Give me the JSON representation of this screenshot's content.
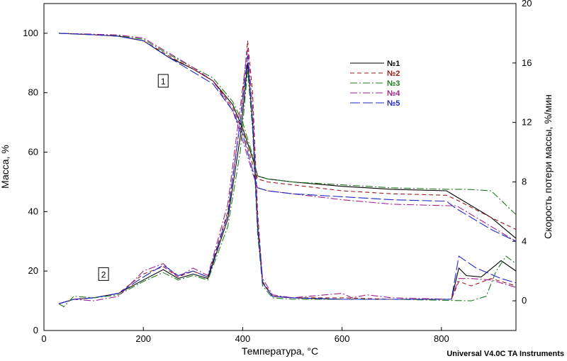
{
  "chart_data": {
    "type": "line",
    "xlabel": "Температура, °C",
    "ylabel_left": "Масса, %",
    "ylabel_right": "Скорость потери массы, %/мин",
    "xlim": [
      0,
      950
    ],
    "ylim_left": [
      0,
      110
    ],
    "ylim_right": [
      -2,
      20
    ],
    "x_ticks": [
      0,
      200,
      400,
      600,
      800
    ],
    "y_left_ticks": [
      0,
      20,
      40,
      60,
      80,
      100
    ],
    "y_right_ticks": [
      0,
      4,
      8,
      12,
      16,
      20
    ],
    "grid": false,
    "legend_position": "top-right",
    "footer": "Universal V4.0C TA Instruments",
    "curve_labels": [
      {
        "text": "1",
        "x": 240,
        "y": 84
      },
      {
        "text": "2",
        "x": 120,
        "y": 19
      }
    ],
    "series": [
      {
        "name": "№1",
        "color": "#000000",
        "dash": "",
        "mass": [
          [
            30,
            100
          ],
          [
            100,
            99.5
          ],
          [
            150,
            99
          ],
          [
            200,
            97.5
          ],
          [
            250,
            92
          ],
          [
            300,
            88
          ],
          [
            340,
            84
          ],
          [
            380,
            76
          ],
          [
            400,
            68
          ],
          [
            420,
            58
          ],
          [
            430,
            52
          ],
          [
            450,
            51
          ],
          [
            500,
            50
          ],
          [
            600,
            48.5
          ],
          [
            700,
            47.5
          ],
          [
            810,
            47
          ],
          [
            830,
            45
          ],
          [
            900,
            38
          ],
          [
            950,
            31
          ]
        ],
        "rate": [
          [
            30,
            -0.2
          ],
          [
            60,
            0.1
          ],
          [
            100,
            0.2
          ],
          [
            150,
            0.5
          ],
          [
            200,
            1.4
          ],
          [
            240,
            2.1
          ],
          [
            270,
            1.5
          ],
          [
            300,
            1.8
          ],
          [
            330,
            1.5
          ],
          [
            370,
            5.5
          ],
          [
            395,
            11
          ],
          [
            410,
            16
          ],
          [
            420,
            12
          ],
          [
            430,
            5
          ],
          [
            440,
            1.2
          ],
          [
            460,
            0.3
          ],
          [
            500,
            0.2
          ],
          [
            600,
            0.1
          ],
          [
            700,
            0.1
          ],
          [
            820,
            0.1
          ],
          [
            835,
            2.2
          ],
          [
            850,
            1.7
          ],
          [
            880,
            1.6
          ],
          [
            920,
            2.7
          ],
          [
            950,
            2.0
          ]
        ]
      },
      {
        "name": "№2",
        "color": "#9b1b1b",
        "dash": "6,4",
        "mass": [
          [
            30,
            100
          ],
          [
            100,
            99.5
          ],
          [
            150,
            99
          ],
          [
            200,
            97.5
          ],
          [
            250,
            92.5
          ],
          [
            300,
            88
          ],
          [
            340,
            84
          ],
          [
            380,
            75
          ],
          [
            400,
            67
          ],
          [
            420,
            56
          ],
          [
            430,
            51
          ],
          [
            450,
            50
          ],
          [
            500,
            49
          ],
          [
            600,
            47
          ],
          [
            700,
            46
          ],
          [
            810,
            45.5
          ],
          [
            830,
            44
          ],
          [
            900,
            38
          ],
          [
            950,
            34
          ]
        ],
        "rate": [
          [
            30,
            -0.2
          ],
          [
            60,
            0.1
          ],
          [
            100,
            0.2
          ],
          [
            150,
            0.5
          ],
          [
            200,
            1.8
          ],
          [
            240,
            2.3
          ],
          [
            270,
            1.6
          ],
          [
            300,
            2.0
          ],
          [
            330,
            1.6
          ],
          [
            370,
            6
          ],
          [
            395,
            12
          ],
          [
            410,
            17.5
          ],
          [
            420,
            14
          ],
          [
            430,
            6
          ],
          [
            440,
            1.3
          ],
          [
            460,
            0.3
          ],
          [
            500,
            0.2
          ],
          [
            600,
            0.2
          ],
          [
            700,
            0.1
          ],
          [
            820,
            0.1
          ],
          [
            835,
            1.3
          ],
          [
            860,
            1.0
          ],
          [
            900,
            1.5
          ],
          [
            950,
            1.0
          ]
        ]
      },
      {
        "name": "№3",
        "color": "#1e7b1e",
        "dash": "10,3,2,3",
        "mass": [
          [
            30,
            100
          ],
          [
            100,
            99.6
          ],
          [
            150,
            99.2
          ],
          [
            200,
            98
          ],
          [
            250,
            93
          ],
          [
            300,
            88.5
          ],
          [
            340,
            85
          ],
          [
            380,
            77
          ],
          [
            400,
            70
          ],
          [
            420,
            59
          ],
          [
            430,
            52
          ],
          [
            450,
            51
          ],
          [
            500,
            50
          ],
          [
            600,
            49
          ],
          [
            700,
            48
          ],
          [
            810,
            47.5
          ],
          [
            850,
            47.5
          ],
          [
            900,
            47
          ],
          [
            950,
            39
          ]
        ],
        "rate": [
          [
            30,
            -0.2
          ],
          [
            40,
            -0.4
          ],
          [
            60,
            0.3
          ],
          [
            100,
            0.2
          ],
          [
            150,
            0.4
          ],
          [
            200,
            1.3
          ],
          [
            240,
            1.9
          ],
          [
            270,
            1.4
          ],
          [
            300,
            1.7
          ],
          [
            330,
            1.4
          ],
          [
            370,
            5
          ],
          [
            395,
            10
          ],
          [
            410,
            15.5
          ],
          [
            420,
            11.5
          ],
          [
            430,
            4.5
          ],
          [
            440,
            1.0
          ],
          [
            460,
            0.2
          ],
          [
            500,
            0.1
          ],
          [
            600,
            0.1
          ],
          [
            700,
            0.1
          ],
          [
            860,
            0.0
          ],
          [
            890,
            0.3
          ],
          [
            910,
            2.0
          ],
          [
            930,
            3.0
          ],
          [
            950,
            2.5
          ]
        ]
      },
      {
        "name": "№4",
        "color": "#a0208c",
        "dash": "10,3,2,3",
        "mass": [
          [
            30,
            100
          ],
          [
            100,
            99.7
          ],
          [
            150,
            99.4
          ],
          [
            200,
            98.4
          ],
          [
            250,
            93.5
          ],
          [
            300,
            88.5
          ],
          [
            340,
            84
          ],
          [
            380,
            74
          ],
          [
            400,
            64
          ],
          [
            420,
            53
          ],
          [
            430,
            48
          ],
          [
            450,
            47
          ],
          [
            500,
            46
          ],
          [
            600,
            44
          ],
          [
            700,
            42.5
          ],
          [
            810,
            42
          ],
          [
            830,
            42
          ],
          [
            900,
            35
          ],
          [
            950,
            30
          ]
        ],
        "rate": [
          [
            30,
            -0.2
          ],
          [
            60,
            0.1
          ],
          [
            100,
            0.0
          ],
          [
            150,
            0.3
          ],
          [
            200,
            2.0
          ],
          [
            240,
            2.5
          ],
          [
            270,
            1.6
          ],
          [
            300,
            2.2
          ],
          [
            330,
            1.7
          ],
          [
            370,
            6.5
          ],
          [
            395,
            13
          ],
          [
            410,
            17
          ],
          [
            420,
            13
          ],
          [
            430,
            5.5
          ],
          [
            440,
            1.5
          ],
          [
            460,
            0.4
          ],
          [
            500,
            0.2
          ],
          [
            600,
            0.5
          ],
          [
            620,
            0.2
          ],
          [
            650,
            0.4
          ],
          [
            700,
            0.2
          ],
          [
            820,
            0.1
          ],
          [
            835,
            1.5
          ],
          [
            860,
            1.5
          ],
          [
            900,
            1.4
          ],
          [
            950,
            0.9
          ]
        ]
      },
      {
        "name": "№5",
        "color": "#1e28c8",
        "dash": "14,4",
        "mass": [
          [
            30,
            100
          ],
          [
            100,
            99.5
          ],
          [
            150,
            99
          ],
          [
            200,
            97.5
          ],
          [
            250,
            92
          ],
          [
            300,
            87
          ],
          [
            340,
            83
          ],
          [
            380,
            74
          ],
          [
            400,
            66
          ],
          [
            420,
            54
          ],
          [
            430,
            48
          ],
          [
            450,
            47
          ],
          [
            500,
            46
          ],
          [
            600,
            45
          ],
          [
            700,
            44
          ],
          [
            810,
            43.5
          ],
          [
            830,
            41
          ],
          [
            900,
            34
          ],
          [
            950,
            30
          ]
        ],
        "rate": [
          [
            30,
            -0.2
          ],
          [
            60,
            0.1
          ],
          [
            100,
            0.2
          ],
          [
            150,
            0.5
          ],
          [
            200,
            1.6
          ],
          [
            240,
            2.4
          ],
          [
            270,
            1.7
          ],
          [
            300,
            2.0
          ],
          [
            330,
            1.6
          ],
          [
            370,
            5.8
          ],
          [
            395,
            12
          ],
          [
            410,
            16.5
          ],
          [
            420,
            12
          ],
          [
            430,
            5
          ],
          [
            440,
            1.2
          ],
          [
            460,
            0.3
          ],
          [
            500,
            0.2
          ],
          [
            600,
            0.1
          ],
          [
            700,
            0.1
          ],
          [
            820,
            0.1
          ],
          [
            835,
            3.0
          ],
          [
            870,
            2.2
          ],
          [
            920,
            1.5
          ],
          [
            950,
            1.2
          ]
        ]
      }
    ]
  }
}
